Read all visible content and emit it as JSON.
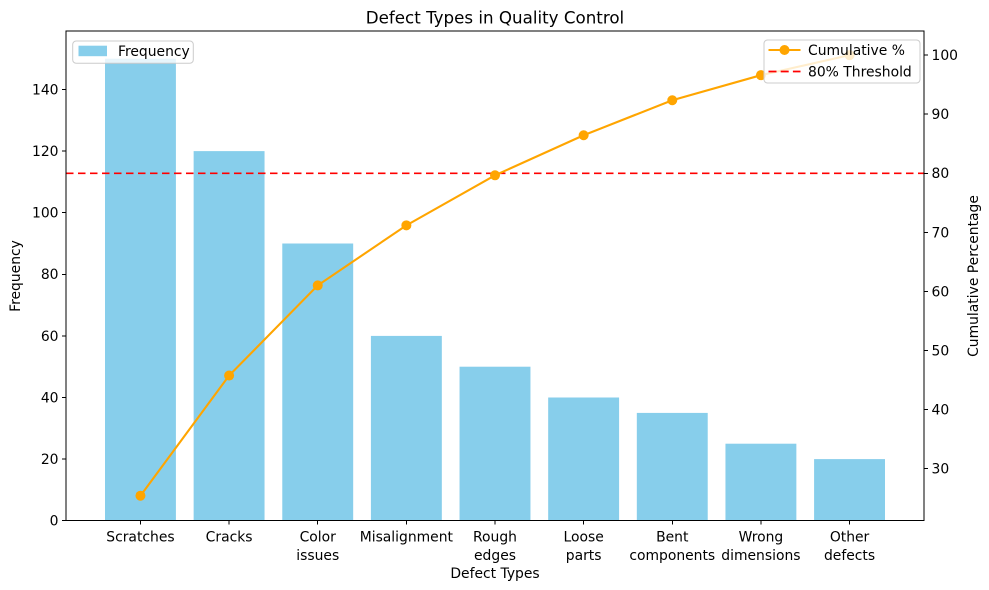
{
  "chart_data": {
    "type": "pareto",
    "title": "Defect Types in Quality Control",
    "xlabel": "Defect Types",
    "ylabel_left": "Frequency",
    "ylabel_right": "Cumulative Percentage",
    "categories": [
      "Scratches",
      "Cracks",
      "Color issues",
      "Misalignment",
      "Rough edges",
      "Loose parts",
      "Bent components",
      "Wrong dimensions",
      "Other defects"
    ],
    "category_label_lines": [
      [
        "Scratches"
      ],
      [
        "Cracks"
      ],
      [
        "Color",
        "issues"
      ],
      [
        "Misalignment"
      ],
      [
        "Rough",
        "edges"
      ],
      [
        "Loose",
        "parts"
      ],
      [
        "Bent",
        "components"
      ],
      [
        "Wrong",
        "dimensions"
      ],
      [
        "Other",
        "defects"
      ]
    ],
    "bar_series": {
      "name": "Frequency",
      "values": [
        150,
        120,
        90,
        60,
        50,
        40,
        35,
        25,
        20
      ],
      "color": "#87CEEB"
    },
    "line_series": {
      "name": "Cumulative %",
      "values": [
        25.42,
        45.76,
        61.02,
        71.19,
        79.66,
        86.44,
        92.37,
        96.61,
        100.0
      ],
      "color": "#FFA500"
    },
    "threshold": {
      "name": "80% Threshold",
      "value": 80,
      "color": "#FF0000",
      "style": "dashed"
    },
    "left_axis": {
      "ticks": [
        0,
        20,
        40,
        60,
        80,
        100,
        120,
        140
      ],
      "range": [
        0,
        159
      ]
    },
    "right_axis": {
      "ticks": [
        30,
        40,
        50,
        60,
        70,
        80,
        90,
        100
      ],
      "range": [
        21.19,
        104.09
      ]
    },
    "legend_left": [
      "Frequency"
    ],
    "legend_right": [
      "Cumulative %",
      "80% Threshold"
    ],
    "grid": false,
    "legend_positions": [
      "upper left",
      "upper right"
    ]
  }
}
